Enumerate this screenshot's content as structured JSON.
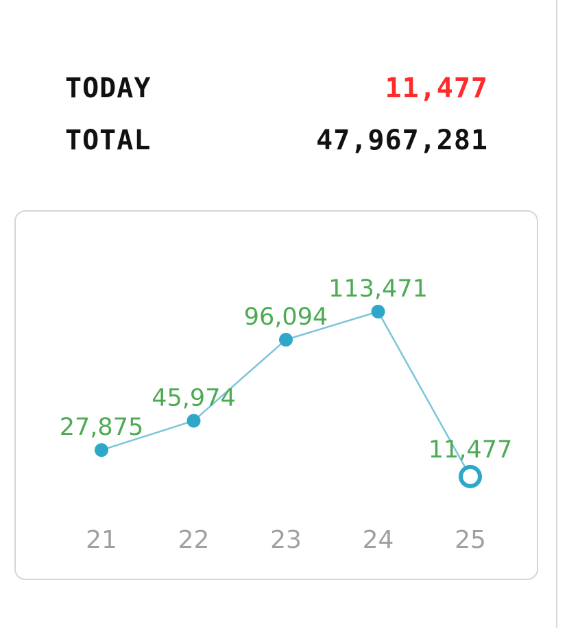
{
  "stats": {
    "today_label": "TODAY",
    "today_value": "11,477",
    "total_label": "TOTAL",
    "total_value": "47,967,281"
  },
  "colors": {
    "today_value": "#ff2b2b",
    "line": "#7cc4da",
    "point": "#2ea7c9",
    "data_label": "#4caa52",
    "tick_label": "#a0a0a0",
    "border": "#d8d6cc"
  },
  "chart_data": {
    "type": "line",
    "title": "",
    "xlabel": "",
    "ylabel": "",
    "categories": [
      "21",
      "22",
      "23",
      "24",
      "25"
    ],
    "series": [
      {
        "values": [
          27875,
          45974,
          96094,
          113471,
          11477
        ],
        "data_labels": [
          "27,875",
          "45,974",
          "96,094",
          "113,471",
          "11,477"
        ],
        "highlight_last": true
      }
    ],
    "grid": false,
    "legend": "none"
  }
}
